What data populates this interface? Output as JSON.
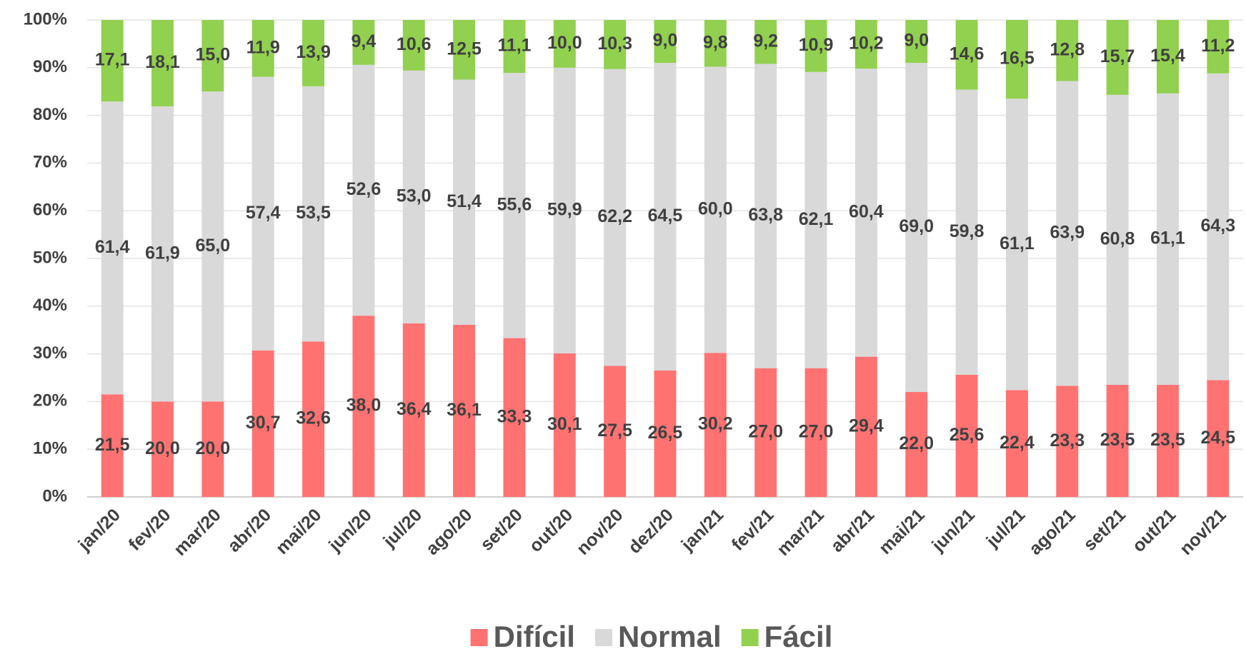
{
  "chart_data": {
    "type": "stacked_bar",
    "categories": [
      "jan/20",
      "fev/20",
      "mar/20",
      "abr/20",
      "mai/20",
      "jun/20",
      "jul/20",
      "ago/20",
      "set/20",
      "out/20",
      "nov/20",
      "dez/20",
      "jan/21",
      "fev/21",
      "mar/21",
      "abr/21",
      "mai/21",
      "jun/21",
      "jul/21",
      "ago/21",
      "set/21",
      "out/21",
      "nov/21"
    ],
    "series": [
      {
        "name": "Difícil",
        "color": "#ff7272",
        "values": [
          21.5,
          20.0,
          20.0,
          30.7,
          32.6,
          38.0,
          36.4,
          36.1,
          33.3,
          30.1,
          27.5,
          26.5,
          30.2,
          27.0,
          27.0,
          29.4,
          22.0,
          25.6,
          22.4,
          23.3,
          23.5,
          23.5,
          24.5
        ],
        "value_labels": [
          "21,5",
          "20,0",
          "20,0",
          "30,7",
          "32,6",
          "38,0",
          "36,4",
          "36,1",
          "33,3",
          "30,1",
          "27,5",
          "26,5",
          "30,2",
          "27,0",
          "27,0",
          "29,4",
          "22,0",
          "25,6",
          "22,4",
          "23,3",
          "23,5",
          "23,5",
          "24,5"
        ]
      },
      {
        "name": "Normal",
        "color": "#d9d9d9",
        "values": [
          61.4,
          61.9,
          65.0,
          57.4,
          53.5,
          52.6,
          53.0,
          51.4,
          55.6,
          59.9,
          62.2,
          64.5,
          60.0,
          63.8,
          62.1,
          60.4,
          69.0,
          59.8,
          61.1,
          63.9,
          60.8,
          61.1,
          64.3
        ],
        "value_labels": [
          "61,4",
          "61,9",
          "65,0",
          "57,4",
          "53,5",
          "52,6",
          "53,0",
          "51,4",
          "55,6",
          "59,9",
          "62,2",
          "64,5",
          "60,0",
          "63,8",
          "62,1",
          "60,4",
          "69,0",
          "59,8",
          "61,1",
          "63,9",
          "60,8",
          "61,1",
          "64,3"
        ]
      },
      {
        "name": "Fácil",
        "color": "#92d050",
        "values": [
          17.1,
          18.1,
          15.0,
          11.9,
          13.9,
          9.4,
          10.6,
          12.5,
          11.1,
          10.0,
          10.3,
          9.0,
          9.8,
          9.2,
          10.9,
          10.2,
          9.0,
          14.6,
          16.5,
          12.8,
          15.7,
          15.4,
          11.2
        ],
        "value_labels": [
          "17,1",
          "18,1",
          "15,0",
          "11,9",
          "13,9",
          "9,4",
          "10,6",
          "12,5",
          "11,1",
          "10,0",
          "10,3",
          "9,0",
          "9,8",
          "9,2",
          "10,9",
          "10,2",
          "9,0",
          "14,6",
          "16,5",
          "12,8",
          "15,7",
          "15,4",
          "11,2"
        ]
      }
    ],
    "ylim": [
      0,
      100
    ],
    "yticks": [
      {
        "value": 0,
        "label": "0%"
      },
      {
        "value": 10,
        "label": "10%"
      },
      {
        "value": 20,
        "label": "20%"
      },
      {
        "value": 30,
        "label": "30%"
      },
      {
        "value": 40,
        "label": "40%"
      },
      {
        "value": 50,
        "label": "50%"
      },
      {
        "value": 60,
        "label": "60%"
      },
      {
        "value": 70,
        "label": "70%"
      },
      {
        "value": 80,
        "label": "80%"
      },
      {
        "value": 90,
        "label": "90%"
      },
      {
        "value": 100,
        "label": "100%"
      }
    ],
    "grid": true,
    "legend": "bottom"
  }
}
